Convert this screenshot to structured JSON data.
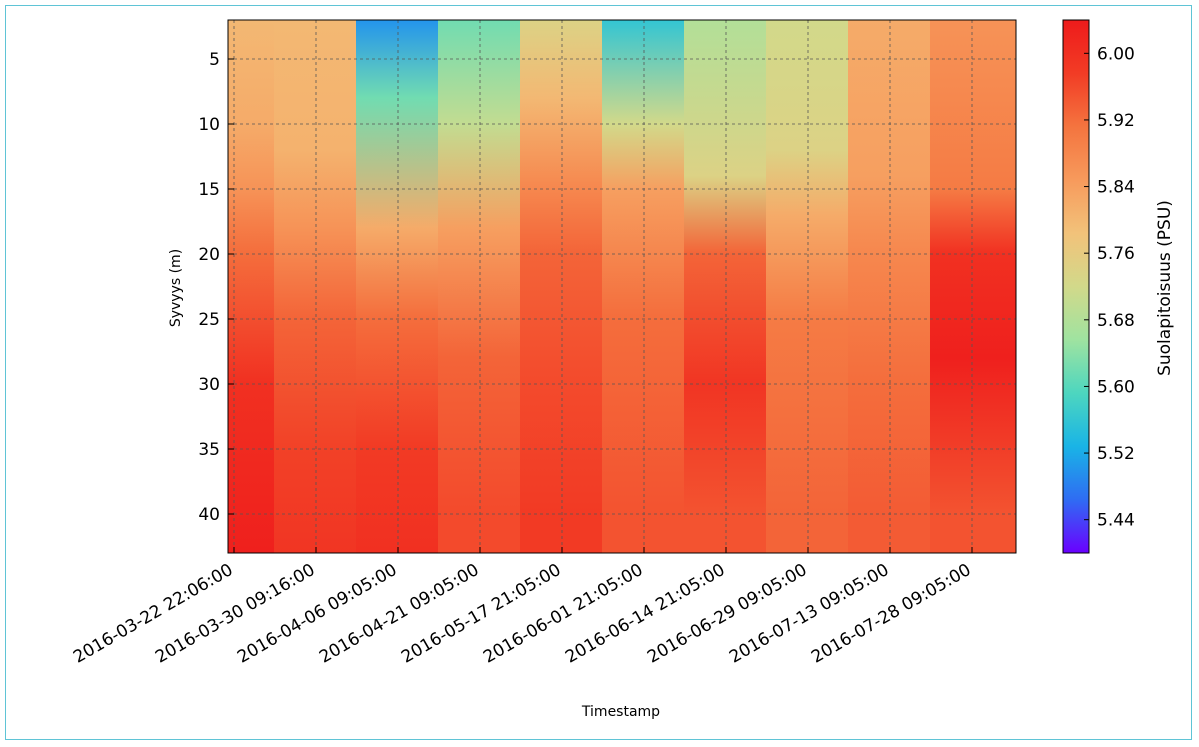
{
  "chart_data": {
    "type": "heatmap",
    "title": "",
    "xlabel": "Timestamp",
    "ylabel": "Syvyys (m)",
    "y_ticks": [
      5,
      10,
      15,
      20,
      25,
      30,
      35,
      40
    ],
    "y_range": [
      2,
      43
    ],
    "y_inverted": true,
    "x_ticks": [
      "2016-03-22 22:06:00",
      "2016-03-30 09:16:00",
      "2016-04-06 09:05:00",
      "2016-04-21 09:05:00",
      "2016-05-17 21:05:00",
      "2016-06-01 21:05:00",
      "2016-06-14 21:05:00",
      "2016-06-29 09:05:00",
      "2016-07-13 09:05:00",
      "2016-07-28 09:05:00"
    ],
    "grid": true,
    "colorbar": {
      "label": "Suolapitoisuus (PSU)",
      "ticks": [
        "6.00",
        "5.92",
        "5.84",
        "5.76",
        "5.68",
        "5.60",
        "5.52",
        "5.44"
      ],
      "vmin": 5.4,
      "vmax": 6.04,
      "colormap": [
        "#6a00ff",
        "#2f6cf3",
        "#19b4e6",
        "#4dd6bf",
        "#9fe3a0",
        "#d2d98a",
        "#f2c27a",
        "#f79a5c",
        "#f4743f",
        "#f23c25",
        "#ee1b1b"
      ]
    },
    "profiles": [
      {
        "depths": [
          2,
          10,
          15,
          20,
          30,
          43
        ],
        "values": [
          5.8,
          5.82,
          5.86,
          5.92,
          6.0,
          6.03
        ]
      },
      {
        "depths": [
          2,
          12,
          18,
          25,
          35,
          43
        ],
        "values": [
          5.8,
          5.81,
          5.86,
          5.93,
          5.97,
          5.99
        ]
      },
      {
        "depths": [
          2,
          8,
          18,
          25,
          35,
          43
        ],
        "values": [
          5.5,
          5.62,
          5.82,
          5.92,
          5.98,
          6.0
        ]
      },
      {
        "depths": [
          2,
          10,
          18,
          28,
          40
        ],
        "values": [
          5.62,
          5.7,
          5.84,
          5.93,
          5.96
        ]
      },
      {
        "depths": [
          2,
          8,
          15,
          20,
          30,
          40
        ],
        "values": [
          5.74,
          5.8,
          5.88,
          5.93,
          5.96,
          5.98
        ]
      },
      {
        "depths": [
          2,
          10,
          15,
          25,
          40
        ],
        "values": [
          5.56,
          5.72,
          5.84,
          5.92,
          5.95
        ]
      },
      {
        "depths": [
          2,
          14,
          20,
          30,
          40
        ],
        "values": [
          5.68,
          5.74,
          5.93,
          5.99,
          5.95
        ]
      },
      {
        "depths": [
          2,
          12,
          17,
          25,
          40
        ],
        "values": [
          5.72,
          5.74,
          5.82,
          5.9,
          5.93
        ]
      },
      {
        "depths": [
          2,
          14,
          20,
          30,
          40
        ],
        "values": [
          5.82,
          5.84,
          5.88,
          5.92,
          5.94
        ]
      },
      {
        "depths": [
          2,
          15,
          20,
          28,
          40
        ],
        "values": [
          5.86,
          5.9,
          6.0,
          6.03,
          5.95
        ]
      }
    ]
  }
}
